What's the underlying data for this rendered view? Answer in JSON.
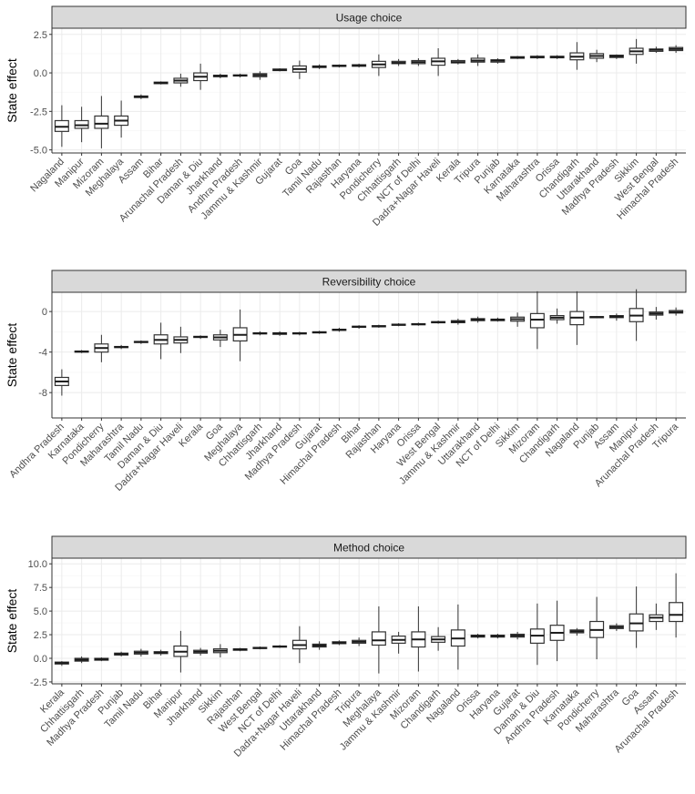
{
  "colors": {
    "strip_fill": "#d9d9d9",
    "strip_border": "#333333",
    "grid": "#ebebeb",
    "grid_minor": "#f5f5f5",
    "box": "#333333",
    "text": "#4d4d4d"
  },
  "chart_data": [
    {
      "type": "box",
      "title": "Usage choice",
      "ylabel": "State effect",
      "ylim": [
        -5.2,
        2.9
      ],
      "yticks": [
        -5.0,
        -2.5,
        0.0,
        2.5
      ],
      "ytick_labels": [
        "-5.0",
        "-2.5",
        "0.0",
        "2.5"
      ],
      "grid": true,
      "categories": [
        "Nagaland",
        "Manipur",
        "Mizoram",
        "Meghalaya",
        "Assam",
        "Bihar",
        "Arunachal Pradesh",
        "Daman & Diu",
        "Jharkhand",
        "Andhra Pradesh",
        "Jammu & Kashmir",
        "Gujarat",
        "Goa",
        "Tamil Nadu",
        "Rajasthan",
        "Haryana",
        "Pondicherry",
        "Chhattisgarh",
        "NCT of Delhi",
        "Dadra+Nagar Haveli",
        "Kerala",
        "Tripura",
        "Punjab",
        "Karnataka",
        "Maharashtra",
        "Orissa",
        "Chandigarh",
        "Uttarakhand",
        "Madhya Pradesh",
        "Sikkim",
        "West Bengal",
        "Himachal Pradesh"
      ],
      "boxes": [
        [
          -4.8,
          -3.8,
          -3.5,
          -3.1,
          -2.1
        ],
        [
          -4.5,
          -3.6,
          -3.4,
          -3.1,
          -2.2
        ],
        [
          -4.9,
          -3.6,
          -3.3,
          -2.8,
          -1.5
        ],
        [
          -4.2,
          -3.4,
          -3.1,
          -2.8,
          -1.8
        ],
        [
          -1.7,
          -1.6,
          -1.55,
          -1.5,
          -1.4
        ],
        [
          -0.75,
          -0.7,
          -0.65,
          -0.6,
          -0.55
        ],
        [
          -0.9,
          -0.65,
          -0.5,
          -0.35,
          -0.05
        ],
        [
          -1.1,
          -0.5,
          -0.25,
          0.0,
          0.6
        ],
        [
          -0.35,
          -0.25,
          -0.2,
          -0.15,
          -0.05
        ],
        [
          -0.3,
          -0.2,
          -0.17,
          -0.13,
          -0.05
        ],
        [
          -0.45,
          -0.25,
          -0.15,
          -0.05,
          0.1
        ],
        [
          0.1,
          0.15,
          0.2,
          0.25,
          0.3
        ],
        [
          -0.4,
          0.05,
          0.25,
          0.45,
          0.8
        ],
        [
          0.25,
          0.35,
          0.4,
          0.45,
          0.55
        ],
        [
          0.35,
          0.42,
          0.45,
          0.5,
          0.55
        ],
        [
          0.35,
          0.43,
          0.48,
          0.53,
          0.6
        ],
        [
          -0.2,
          0.35,
          0.55,
          0.75,
          1.2
        ],
        [
          0.45,
          0.6,
          0.65,
          0.75,
          0.9
        ],
        [
          0.45,
          0.6,
          0.7,
          0.8,
          0.95
        ],
        [
          -0.2,
          0.5,
          0.75,
          0.95,
          1.6
        ],
        [
          0.55,
          0.65,
          0.7,
          0.8,
          0.9
        ],
        [
          0.45,
          0.7,
          0.8,
          0.95,
          1.2
        ],
        [
          0.6,
          0.7,
          0.8,
          0.85,
          0.95
        ],
        [
          0.9,
          0.95,
          1.0,
          1.05,
          1.1
        ],
        [
          0.9,
          0.98,
          1.03,
          1.08,
          1.15
        ],
        [
          0.9,
          0.98,
          1.03,
          1.08,
          1.15
        ],
        [
          0.2,
          0.85,
          1.05,
          1.3,
          2.0
        ],
        [
          0.7,
          0.95,
          1.1,
          1.25,
          1.5
        ],
        [
          0.9,
          1.0,
          1.08,
          1.15,
          1.2
        ],
        [
          0.6,
          1.2,
          1.4,
          1.6,
          2.2
        ],
        [
          1.3,
          1.4,
          1.5,
          1.55,
          1.7
        ],
        [
          1.3,
          1.45,
          1.55,
          1.65,
          1.8
        ]
      ]
    },
    {
      "type": "box",
      "title": "Reversibility choice",
      "ylabel": "State effect",
      "ylim": [
        -10.5,
        1.9
      ],
      "yticks": [
        -8,
        -4,
        0
      ],
      "ytick_labels": [
        "-8",
        "-4",
        "0"
      ],
      "grid": true,
      "categories": [
        "Andhra Pradesh",
        "Karnataka",
        "Pondicherry",
        "Maharashtra",
        "Tamil Nadu",
        "Daman & Diu",
        "Dadra+Nagar Haveli",
        "Kerala",
        "Goa",
        "Meghalaya",
        "Chhattisgarh",
        "Jharkhand",
        "Madhya Pradesh",
        "Gujarat",
        "Himachal Pradesh",
        "Bihar",
        "Rajasthan",
        "Haryana",
        "Orissa",
        "West Bengal",
        "Jammu & Kashmir",
        "Uttarakhand",
        "NCT of Delhi",
        "Sikkim",
        "Mizoram",
        "Chandigarh",
        "Nagaland",
        "Punjab",
        "Assam",
        "Manipur",
        "Arunachal Pradesh",
        "Tripura"
      ],
      "boxes": [
        [
          -8.3,
          -7.3,
          -6.9,
          -6.5,
          -5.7
        ],
        [
          -4.1,
          -4.0,
          -3.95,
          -3.9,
          -3.8
        ],
        [
          -5.0,
          -4.0,
          -3.6,
          -3.2,
          -2.3
        ],
        [
          -3.7,
          -3.55,
          -3.5,
          -3.45,
          -3.3
        ],
        [
          -3.2,
          -3.05,
          -3.0,
          -2.95,
          -2.85
        ],
        [
          -4.7,
          -3.2,
          -2.8,
          -2.3,
          -1.1
        ],
        [
          -4.1,
          -3.1,
          -2.8,
          -2.5,
          -1.5
        ],
        [
          -2.7,
          -2.55,
          -2.5,
          -2.45,
          -2.35
        ],
        [
          -3.5,
          -2.8,
          -2.55,
          -2.3,
          -1.8
        ],
        [
          -4.9,
          -2.9,
          -2.3,
          -1.6,
          0.2
        ],
        [
          -2.35,
          -2.2,
          -2.15,
          -2.1,
          -1.95
        ],
        [
          -2.4,
          -2.25,
          -2.15,
          -2.1,
          -1.95
        ],
        [
          -2.35,
          -2.2,
          -2.15,
          -2.1,
          -2.0
        ],
        [
          -2.2,
          -2.1,
          -2.05,
          -2.0,
          -1.9
        ],
        [
          -2.0,
          -1.85,
          -1.8,
          -1.75,
          -1.6
        ],
        [
          -1.7,
          -1.55,
          -1.5,
          -1.45,
          -1.35
        ],
        [
          -1.6,
          -1.5,
          -1.45,
          -1.4,
          -1.3
        ],
        [
          -1.45,
          -1.35,
          -1.3,
          -1.25,
          -1.15
        ],
        [
          -1.4,
          -1.3,
          -1.25,
          -1.2,
          -1.1
        ],
        [
          -1.2,
          -1.1,
          -1.05,
          -1.0,
          -0.9
        ],
        [
          -1.3,
          -1.1,
          -1.0,
          -0.9,
          -0.7
        ],
        [
          -1.1,
          -0.9,
          -0.8,
          -0.7,
          -0.5
        ],
        [
          -1.0,
          -0.9,
          -0.8,
          -0.75,
          -0.6
        ],
        [
          -1.5,
          -0.95,
          -0.75,
          -0.55,
          -0.1
        ],
        [
          -3.7,
          -1.6,
          -0.8,
          -0.2,
          2.0
        ],
        [
          -1.2,
          -0.8,
          -0.6,
          -0.4,
          0.3
        ],
        [
          -3.3,
          -1.3,
          -0.6,
          0.0,
          2.0
        ],
        [
          -0.65,
          -0.57,
          -0.55,
          -0.5,
          -0.45
        ],
        [
          -0.9,
          -0.6,
          -0.5,
          -0.4,
          -0.2
        ],
        [
          -2.9,
          -1.0,
          -0.4,
          0.3,
          2.2
        ],
        [
          -0.8,
          -0.35,
          -0.2,
          -0.05,
          0.45
        ],
        [
          -0.4,
          -0.15,
          -0.05,
          0.1,
          0.4
        ]
      ]
    },
    {
      "type": "box",
      "title": "Method choice",
      "ylabel": "State effect",
      "ylim": [
        -2.7,
        10.6
      ],
      "yticks": [
        -2.5,
        0.0,
        2.5,
        5.0,
        7.5,
        10.0
      ],
      "ytick_labels": [
        "-2.5",
        "0.0",
        "2.5",
        "5.0",
        "7.5",
        "10.0"
      ],
      "grid": true,
      "categories": [
        "Kerala",
        "Chhattisgarh",
        "Madhya Pradesh",
        "Punjab",
        "Tamil Nadu",
        "Bihar",
        "Manipur",
        "Jharkhand",
        "Sikkim",
        "Rajasthan",
        "West Bengal",
        "NCT of Delhi",
        "Dadra+Nagar Haveli",
        "Uttarakhand",
        "Himachal Pradesh",
        "Tripura",
        "Meghalaya",
        "Jammu & Kashmir",
        "Mizoram",
        "Chandigarh",
        "Nagaland",
        "Orissa",
        "Haryana",
        "Gujarat",
        "Daman & Diu",
        "Andhra Pradesh",
        "Karnataka",
        "Pondicherry",
        "Maharashtra",
        "Goa",
        "Assam",
        "Arunachal Pradesh"
      ],
      "boxes": [
        [
          -0.8,
          -0.6,
          -0.5,
          -0.4,
          -0.3
        ],
        [
          -0.5,
          -0.3,
          -0.15,
          0.0,
          0.2
        ],
        [
          -0.3,
          -0.2,
          -0.1,
          0.0,
          0.1
        ],
        [
          0.2,
          0.35,
          0.45,
          0.55,
          0.7
        ],
        [
          0.2,
          0.45,
          0.6,
          0.75,
          1.0
        ],
        [
          0.3,
          0.5,
          0.6,
          0.7,
          0.9
        ],
        [
          -1.5,
          0.2,
          0.7,
          1.3,
          2.9
        ],
        [
          0.3,
          0.55,
          0.7,
          0.85,
          1.1
        ],
        [
          0.1,
          0.6,
          0.8,
          1.0,
          1.5
        ],
        [
          0.75,
          0.85,
          0.95,
          1.0,
          1.1
        ],
        [
          0.95,
          1.05,
          1.1,
          1.15,
          1.25
        ],
        [
          1.1,
          1.2,
          1.25,
          1.3,
          1.4
        ],
        [
          -0.5,
          1.0,
          1.4,
          1.9,
          3.4
        ],
        [
          0.9,
          1.2,
          1.35,
          1.5,
          1.8
        ],
        [
          1.4,
          1.55,
          1.65,
          1.75,
          1.9
        ],
        [
          1.3,
          1.6,
          1.75,
          1.9,
          2.2
        ],
        [
          -1.6,
          1.4,
          1.9,
          2.8,
          5.5
        ],
        [
          0.5,
          1.6,
          1.95,
          2.35,
          2.8
        ],
        [
          -1.4,
          1.2,
          2.0,
          2.8,
          5.5
        ],
        [
          0.8,
          1.7,
          2.0,
          2.3,
          3.3
        ],
        [
          -1.2,
          1.3,
          2.1,
          3.0,
          5.7
        ],
        [
          2.1,
          2.25,
          2.35,
          2.45,
          2.6
        ],
        [
          2.1,
          2.25,
          2.35,
          2.45,
          2.6
        ],
        [
          2.0,
          2.25,
          2.4,
          2.55,
          2.8
        ],
        [
          -0.7,
          1.6,
          2.4,
          3.1,
          5.8
        ],
        [
          -0.3,
          1.9,
          2.7,
          3.5,
          6.1
        ],
        [
          2.4,
          2.7,
          2.85,
          3.0,
          3.2
        ],
        [
          -0.1,
          2.2,
          3.0,
          3.9,
          6.5
        ],
        [
          2.9,
          3.15,
          3.3,
          3.45,
          3.7
        ],
        [
          1.1,
          2.9,
          3.7,
          4.7,
          7.6
        ],
        [
          3.0,
          3.9,
          4.3,
          4.6,
          5.8
        ],
        [
          2.2,
          3.9,
          4.6,
          5.9,
          9.0
        ]
      ]
    }
  ]
}
